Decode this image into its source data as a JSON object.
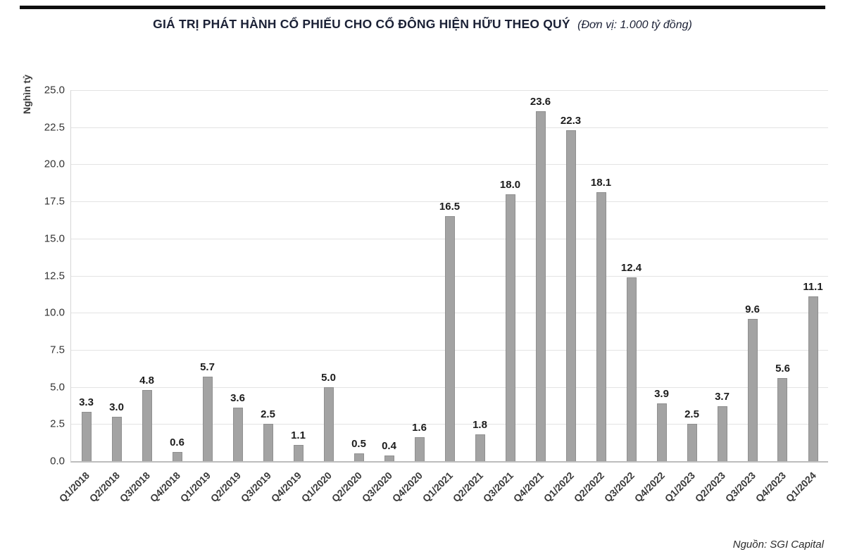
{
  "header": {
    "title": "GIÁ TRỊ PHÁT HÀNH CỔ PHIẾU CHO CỔ ĐÔNG HIỆN HỮU THEO QUÝ",
    "subtitle": "(Đơn vị: 1.000 tỷ đồng)"
  },
  "footer": {
    "source": "Nguồn: SGI Capital"
  },
  "chart_data": {
    "type": "bar",
    "title": "GIÁ TRỊ PHÁT HÀNH CỔ PHIẾU CHO CỔ ĐÔNG HIỆN HỮU THEO QUÝ",
    "subtitle": "(Đơn vị: 1.000 tỷ đồng)",
    "ylabel": "Nghìn tỷ",
    "xlabel": "",
    "source": "Nguồn: SGI Capital",
    "categories": [
      "Q1/2018",
      "Q2/2018",
      "Q3/2018",
      "Q4/2018",
      "Q1/2019",
      "Q2/2019",
      "Q3/2019",
      "Q4/2019",
      "Q1/2020",
      "Q2/2020",
      "Q3/2020",
      "Q4/2020",
      "Q1/2021",
      "Q2/2021",
      "Q3/2021",
      "Q4/2021",
      "Q1/2022",
      "Q2/2022",
      "Q3/2022",
      "Q4/2022",
      "Q1/2023",
      "Q2/2023",
      "Q3/2023",
      "Q4/2023",
      "Q1/2024"
    ],
    "values": [
      3.3,
      3.0,
      4.8,
      0.6,
      5.7,
      3.6,
      2.5,
      1.1,
      5.0,
      0.5,
      0.4,
      1.6,
      16.5,
      1.8,
      18.0,
      23.6,
      22.3,
      18.1,
      12.4,
      3.9,
      2.5,
      3.7,
      9.6,
      5.6,
      11.1
    ],
    "ylim": [
      0,
      25
    ],
    "yticks": [
      0.0,
      2.5,
      5.0,
      7.5,
      10.0,
      12.5,
      15.0,
      17.5,
      20.0,
      22.5,
      25.0
    ],
    "grid": true,
    "value_labels": true,
    "legend": "none",
    "colors": {
      "bar": "#a3a3a3",
      "bar_border": "#8f8f8f",
      "title": "#1b2136",
      "value_label": "#1c1c1c",
      "grid": "#e3e3e3"
    }
  }
}
